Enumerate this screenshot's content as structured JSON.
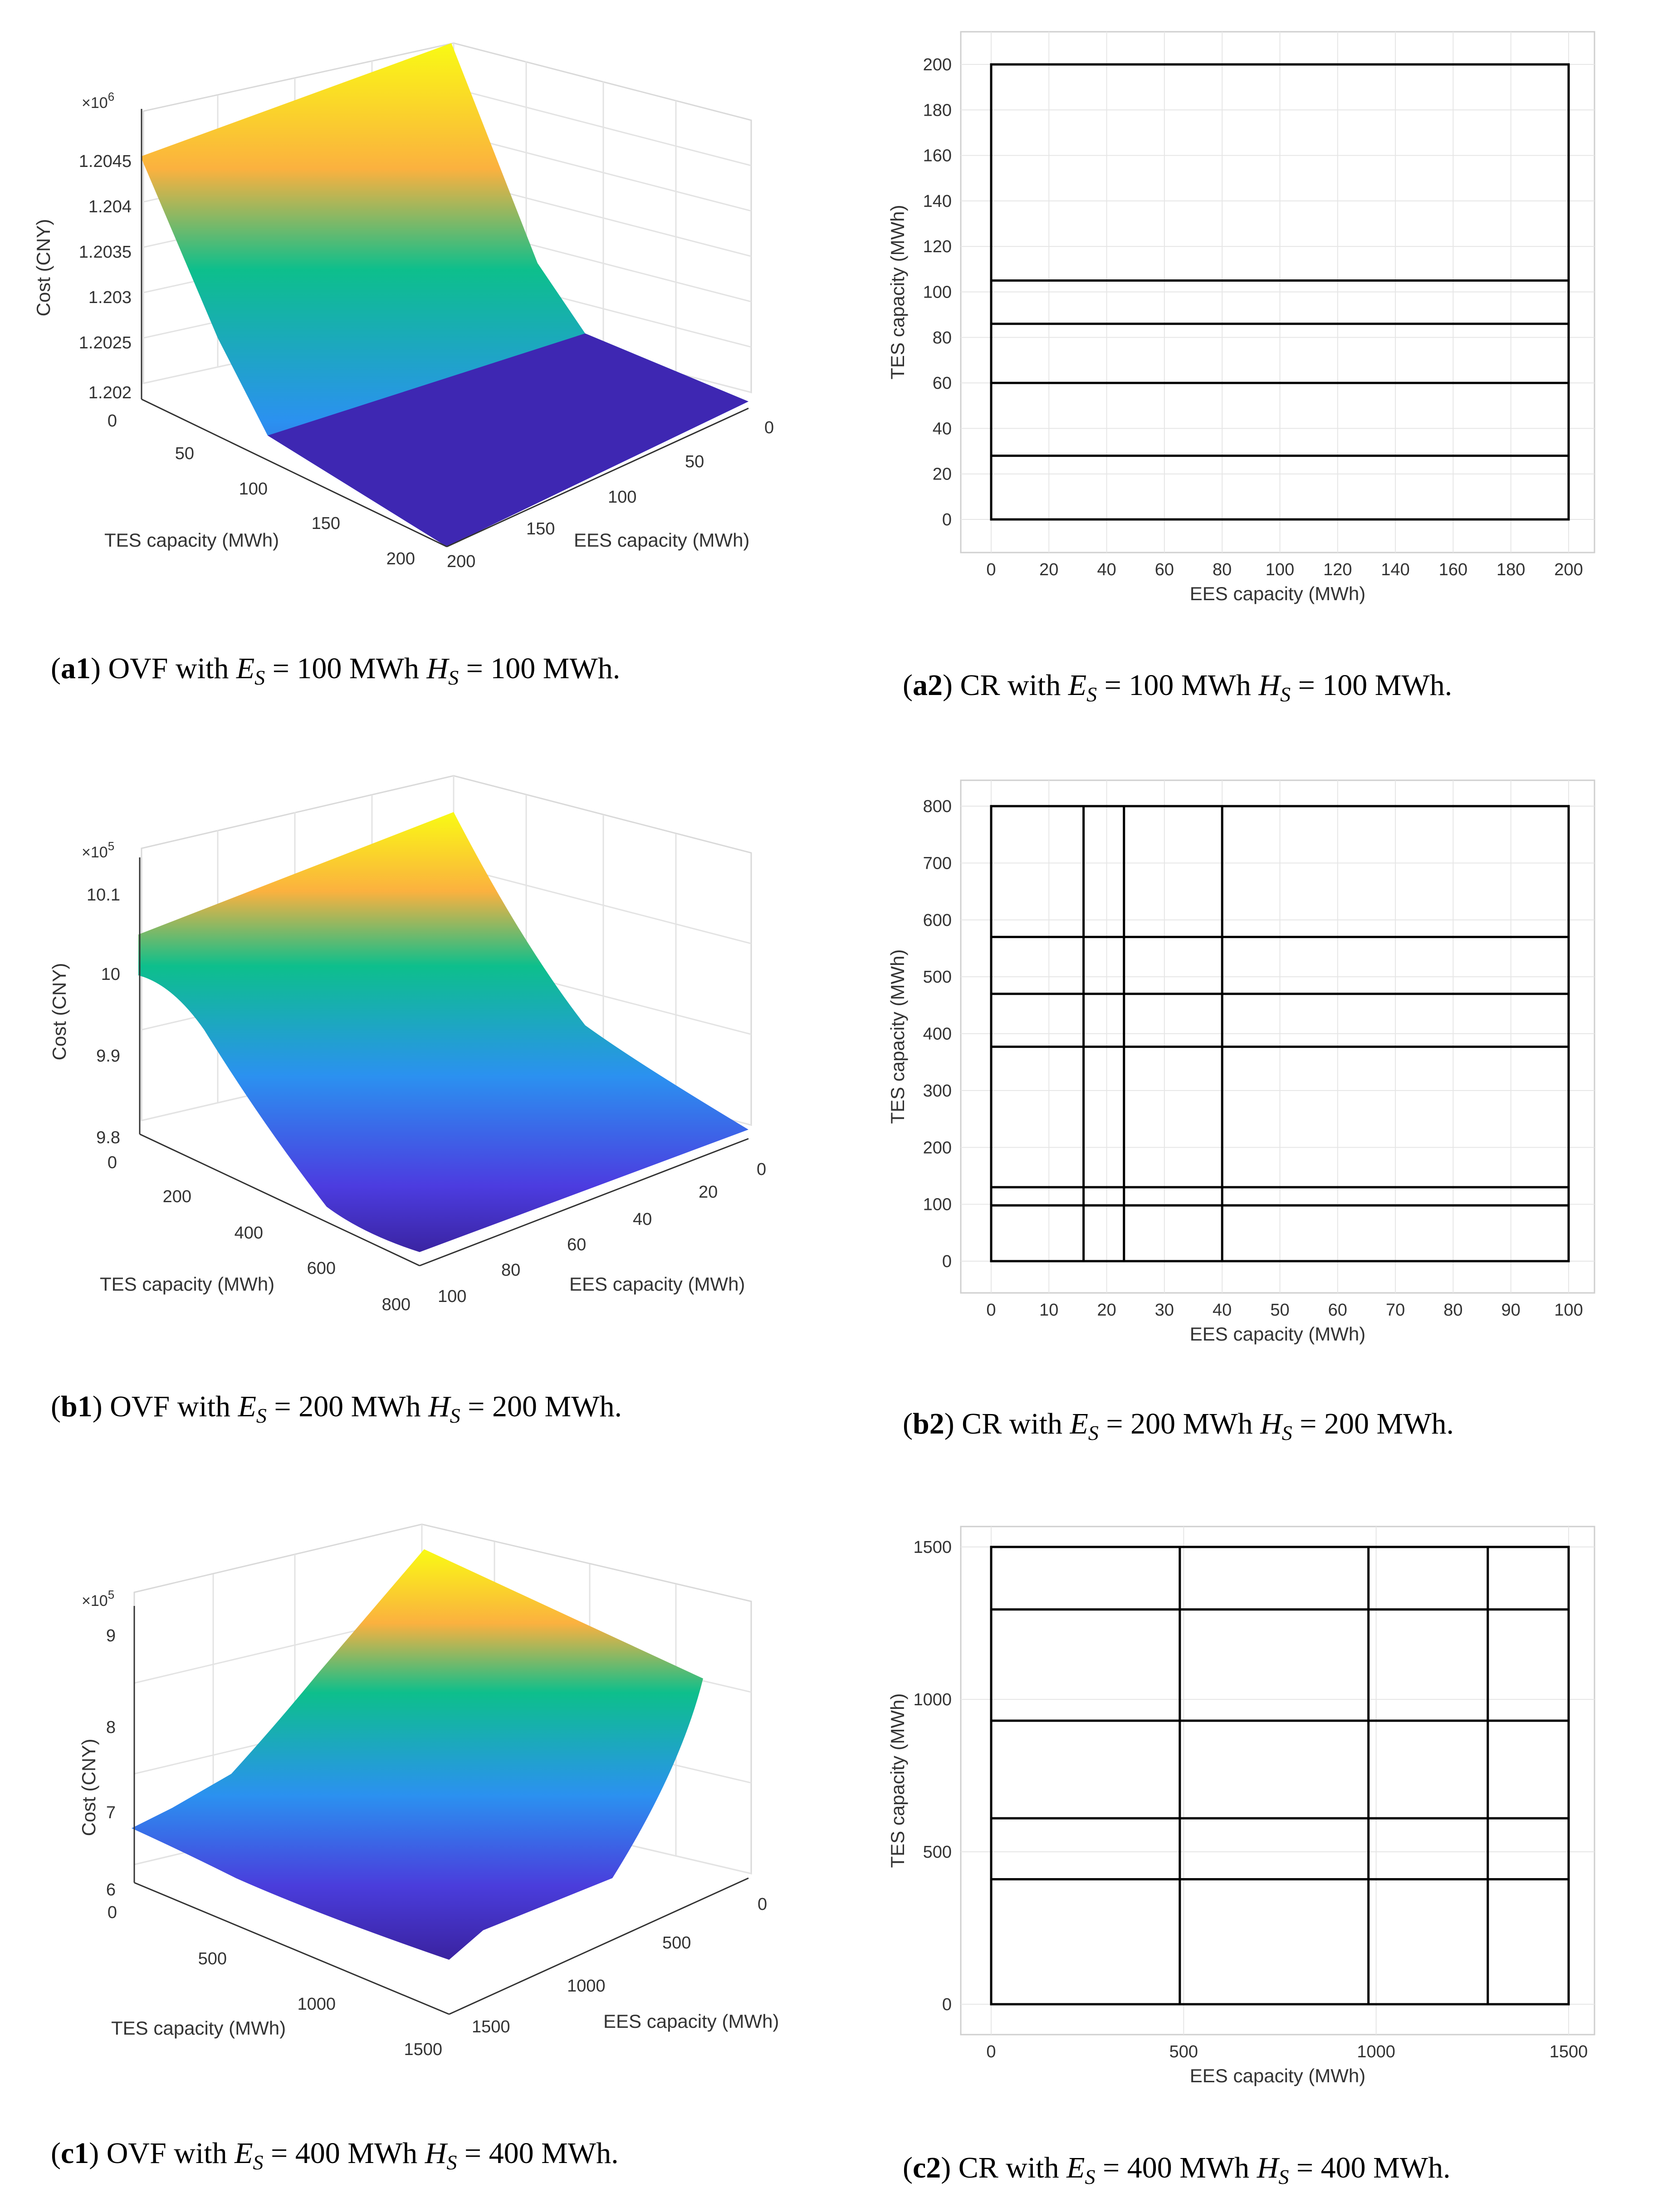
{
  "colors": {
    "surface_low": "#3d26a8",
    "surface_mid_low": "#2b91f0",
    "surface_mid": "#0dbf8c",
    "surface_mid_high": "#fbb13f",
    "surface_high": "#f9fa14",
    "line": "#000000",
    "grid": "#e6e6e6"
  },
  "chart_data": [
    {
      "id": "a1",
      "type": "surface3d",
      "zlabel": "Cost (CNY)",
      "xlabel": "TES capacity (MWh)",
      "ylabel": "EES capacity (MWh)",
      "zexp": "×10",
      "zexp_power": "6",
      "xticks": [
        "0",
        "50",
        "100",
        "150",
        "200"
      ],
      "yticks": [
        "0",
        "50",
        "100",
        "150",
        "200"
      ],
      "zticks": [
        "1.202",
        "1.2025",
        "1.203",
        "1.2035",
        "1.204",
        "1.2045"
      ],
      "xlim": [
        0,
        200
      ],
      "ylim": [
        0,
        200
      ],
      "zlim": [
        1202000,
        1204800
      ],
      "surface": {
        "break_tes": [
          0,
          100,
          200
        ],
        "cost_at_tes": [
          1204800,
          1202000,
          1202000
        ]
      },
      "caption": {
        "label": "a1",
        "prefix": "(",
        "suffix": ") OVF with ",
        "e": "E",
        "h": "H",
        "sub": "S",
        "eq": " = ",
        "e_val": "100",
        "h_val": "100",
        "unit": "MWh",
        "end": "."
      }
    },
    {
      "id": "a2",
      "type": "region_partition",
      "xlabel": "EES capacity (MWh)",
      "ylabel": "TES capacity (MWh)",
      "xlim": [
        0,
        200
      ],
      "ylim": [
        0,
        200
      ],
      "xticks": [
        "0",
        "20",
        "40",
        "60",
        "80",
        "100",
        "120",
        "140",
        "160",
        "180",
        "200"
      ],
      "yticks": [
        "0",
        "20",
        "40",
        "60",
        "80",
        "100",
        "120",
        "140",
        "160",
        "180",
        "200"
      ],
      "vlines": [],
      "hlines": [
        28,
        60,
        86,
        105
      ],
      "caption": {
        "label": "a2",
        "prefix": "(",
        "suffix": ") CR with ",
        "e": "E",
        "h": "H",
        "sub": "S",
        "eq": " = ",
        "e_val": "100",
        "h_val": "100",
        "unit": "MWh",
        "end": "."
      }
    },
    {
      "id": "b1",
      "type": "surface3d",
      "zlabel": "Cost (CNY)",
      "xlabel": "TES capacity (MWh)",
      "ylabel": "EES capacity (MWh)",
      "zexp": "×10",
      "zexp_power": "5",
      "xticks": [
        "0",
        "200",
        "400",
        "600",
        "800"
      ],
      "yticks": [
        "0",
        "20",
        "40",
        "60",
        "80",
        "100"
      ],
      "zticks": [
        "9.8",
        "9.9",
        "10",
        "10.1"
      ],
      "xlim": [
        0,
        800
      ],
      "ylim": [
        0,
        100
      ],
      "zlim": [
        980000,
        1011000
      ],
      "surface": {
        "break_tes": [
          0,
          400,
          800
        ],
        "cost_at_tes": [
          1011000,
          980000,
          980000
        ]
      },
      "caption": {
        "label": "b1",
        "prefix": "(",
        "suffix": ") OVF with ",
        "e": "E",
        "h": "H",
        "sub": "S",
        "eq": " = ",
        "e_val": "200",
        "h_val": "200",
        "unit": "MWh",
        "end": "."
      }
    },
    {
      "id": "b2",
      "type": "region_partition",
      "xlabel": "EES capacity (MWh)",
      "ylabel": "TES capacity (MWh)",
      "xlim": [
        0,
        100
      ],
      "ylim": [
        0,
        800
      ],
      "xticks": [
        "0",
        "10",
        "20",
        "30",
        "40",
        "50",
        "60",
        "70",
        "80",
        "90",
        "100"
      ],
      "yticks": [
        "0",
        "100",
        "200",
        "300",
        "400",
        "500",
        "600",
        "700",
        "800"
      ],
      "vlines": [
        16,
        23,
        40
      ],
      "hlines": [
        98,
        130,
        377,
        470,
        570
      ],
      "caption": {
        "label": "b2",
        "prefix": "(",
        "suffix": ") CR with ",
        "e": "E",
        "h": "H",
        "sub": "S",
        "eq": " = ",
        "e_val": "200",
        "h_val": "200",
        "unit": "MWh",
        "end": "."
      }
    },
    {
      "id": "c1",
      "type": "surface3d",
      "zlabel": "Cost (CNY)",
      "xlabel": "TES capacity (MWh)",
      "ylabel": "EES capacity (MWh)",
      "zexp": "×10",
      "zexp_power": "5",
      "xticks": [
        "0",
        "500",
        "1000",
        "1500"
      ],
      "yticks": [
        "0",
        "500",
        "1000",
        "1500"
      ],
      "zticks": [
        "6",
        "7",
        "8",
        "9"
      ],
      "xlim": [
        0,
        1500
      ],
      "ylim": [
        0,
        1500
      ],
      "zlim": [
        600000,
        900000
      ],
      "surface": {
        "break_tes": [
          0,
          750,
          1500
        ],
        "cost_at_tes": [
          680000,
          620000,
          600000
        ]
      },
      "caption": {
        "label": "c1",
        "prefix": "(",
        "suffix": ") OVF with ",
        "e": "E",
        "h": "H",
        "sub": "S",
        "eq": " = ",
        "e_val": "400",
        "h_val": "400",
        "unit": "MWh",
        "end": "."
      }
    },
    {
      "id": "c2",
      "type": "region_partition",
      "xlabel": "EES capacity (MWh)",
      "ylabel": "TES capacity (MWh)",
      "xlim": [
        0,
        1500
      ],
      "ylim": [
        0,
        1500
      ],
      "xticks": [
        "0",
        "500",
        "1000",
        "1500"
      ],
      "yticks": [
        "0",
        "500",
        "1000",
        "1500"
      ],
      "vlines": [
        490,
        980,
        1290
      ],
      "hlines": [
        410,
        610,
        930,
        1295
      ],
      "caption": {
        "label": "c2",
        "prefix": "(",
        "suffix": ") CR with ",
        "e": "E",
        "h": "H",
        "sub": "S",
        "eq": " = ",
        "e_val": "400",
        "h_val": "400",
        "unit": "MWh",
        "end": "."
      }
    }
  ]
}
